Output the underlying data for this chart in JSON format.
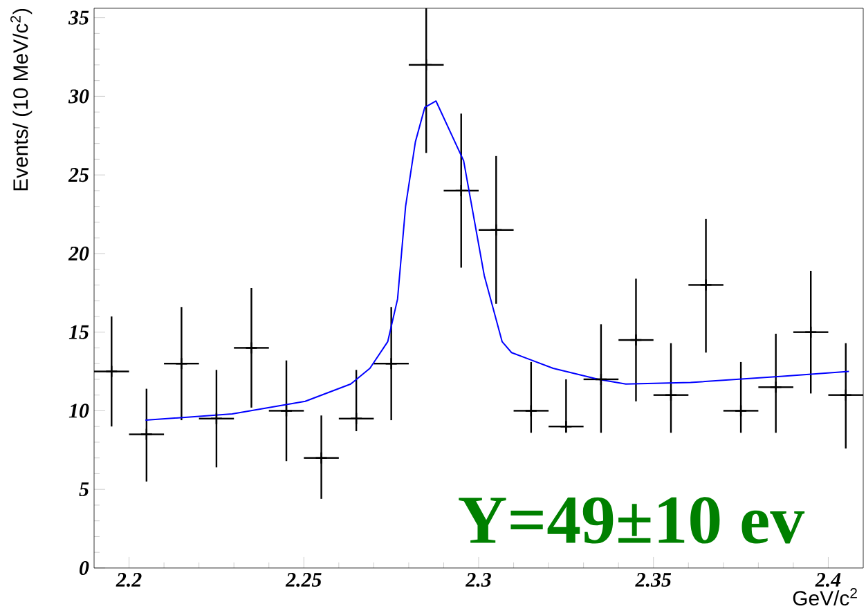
{
  "chart_data": {
    "type": "scatter",
    "xlabel": "GeV/c$^{2}$",
    "ylabel": "Events/ (10 MeV/c$^{2}$)",
    "x": [
      2.195,
      2.205,
      2.215,
      2.225,
      2.235,
      2.245,
      2.255,
      2.265,
      2.275,
      2.285,
      2.295,
      2.305,
      2.315,
      2.325,
      2.335,
      2.345,
      2.355,
      2.365,
      2.375,
      2.385,
      2.395,
      2.405
    ],
    "xlim": [
      2.19,
      2.41
    ],
    "ylim": [
      0,
      35.6
    ],
    "xticks": [
      2.2,
      2.25,
      2.3,
      2.35,
      2.4
    ],
    "yticks": [
      0,
      5,
      10,
      15,
      20,
      25,
      30,
      35
    ],
    "grid": false,
    "series": [
      {
        "color": "#000000",
        "marker": "cross",
        "values": [
          12.5,
          8.5,
          13,
          9.5,
          14,
          10,
          7,
          9.5,
          13,
          32,
          24,
          21.5,
          10,
          9,
          12,
          14.5,
          11,
          18,
          10,
          11.5,
          15,
          11
        ],
        "errors": [
          [
            9.0,
            16.0
          ],
          [
            5.5,
            11.4
          ],
          [
            9.4,
            16.6
          ],
          [
            6.4,
            12.6
          ],
          [
            10.2,
            17.8
          ],
          [
            6.8,
            13.2
          ],
          [
            4.4,
            9.7
          ],
          [
            8.7,
            12.6
          ],
          [
            9.4,
            16.6
          ],
          [
            26.4,
            35.6
          ],
          [
            19.1,
            28.9
          ],
          [
            16.8,
            26.2
          ],
          [
            8.6,
            13.1
          ],
          [
            8.6,
            12.0
          ],
          [
            8.6,
            15.5
          ],
          [
            10.6,
            18.4
          ],
          [
            8.6,
            14.3
          ],
          [
            13.7,
            22.2
          ],
          [
            8.6,
            13.1
          ],
          [
            8.6,
            14.9
          ],
          [
            11.1,
            18.9
          ],
          [
            7.6,
            14.3
          ]
        ],
        "xerrors": [
          0.005,
          0.005,
          0.005,
          0.005,
          0.005,
          0.005,
          0.005,
          0.005,
          0.005,
          0.005,
          0.005,
          0.005,
          0.005,
          0.005,
          0.005,
          0.005,
          0.005,
          0.005,
          0.005,
          0.005,
          0.005,
          0.005
        ]
      },
      {
        "type": "line",
        "color": "#0000ff",
        "marker": "none",
        "x": [
          2.2047,
          2.2295,
          2.2504,
          2.2634,
          2.2689,
          2.274,
          2.2768,
          2.2791,
          2.2819,
          2.2846,
          2.2878,
          2.2957,
          2.3016,
          2.3067,
          2.3094,
          2.3213,
          2.3343,
          2.3421,
          2.3606,
          2.387,
          2.4059
        ],
        "values": [
          9.4,
          9.8,
          10.6,
          11.7,
          12.7,
          14.4,
          17.1,
          23,
          27.1,
          29.3,
          29.7,
          25.9,
          18.6,
          14.4,
          13.7,
          12.7,
          12,
          11.7,
          11.8,
          12.2,
          12.5
        ]
      }
    ],
    "annotations": [
      "Y=49±10 ev"
    ]
  }
}
